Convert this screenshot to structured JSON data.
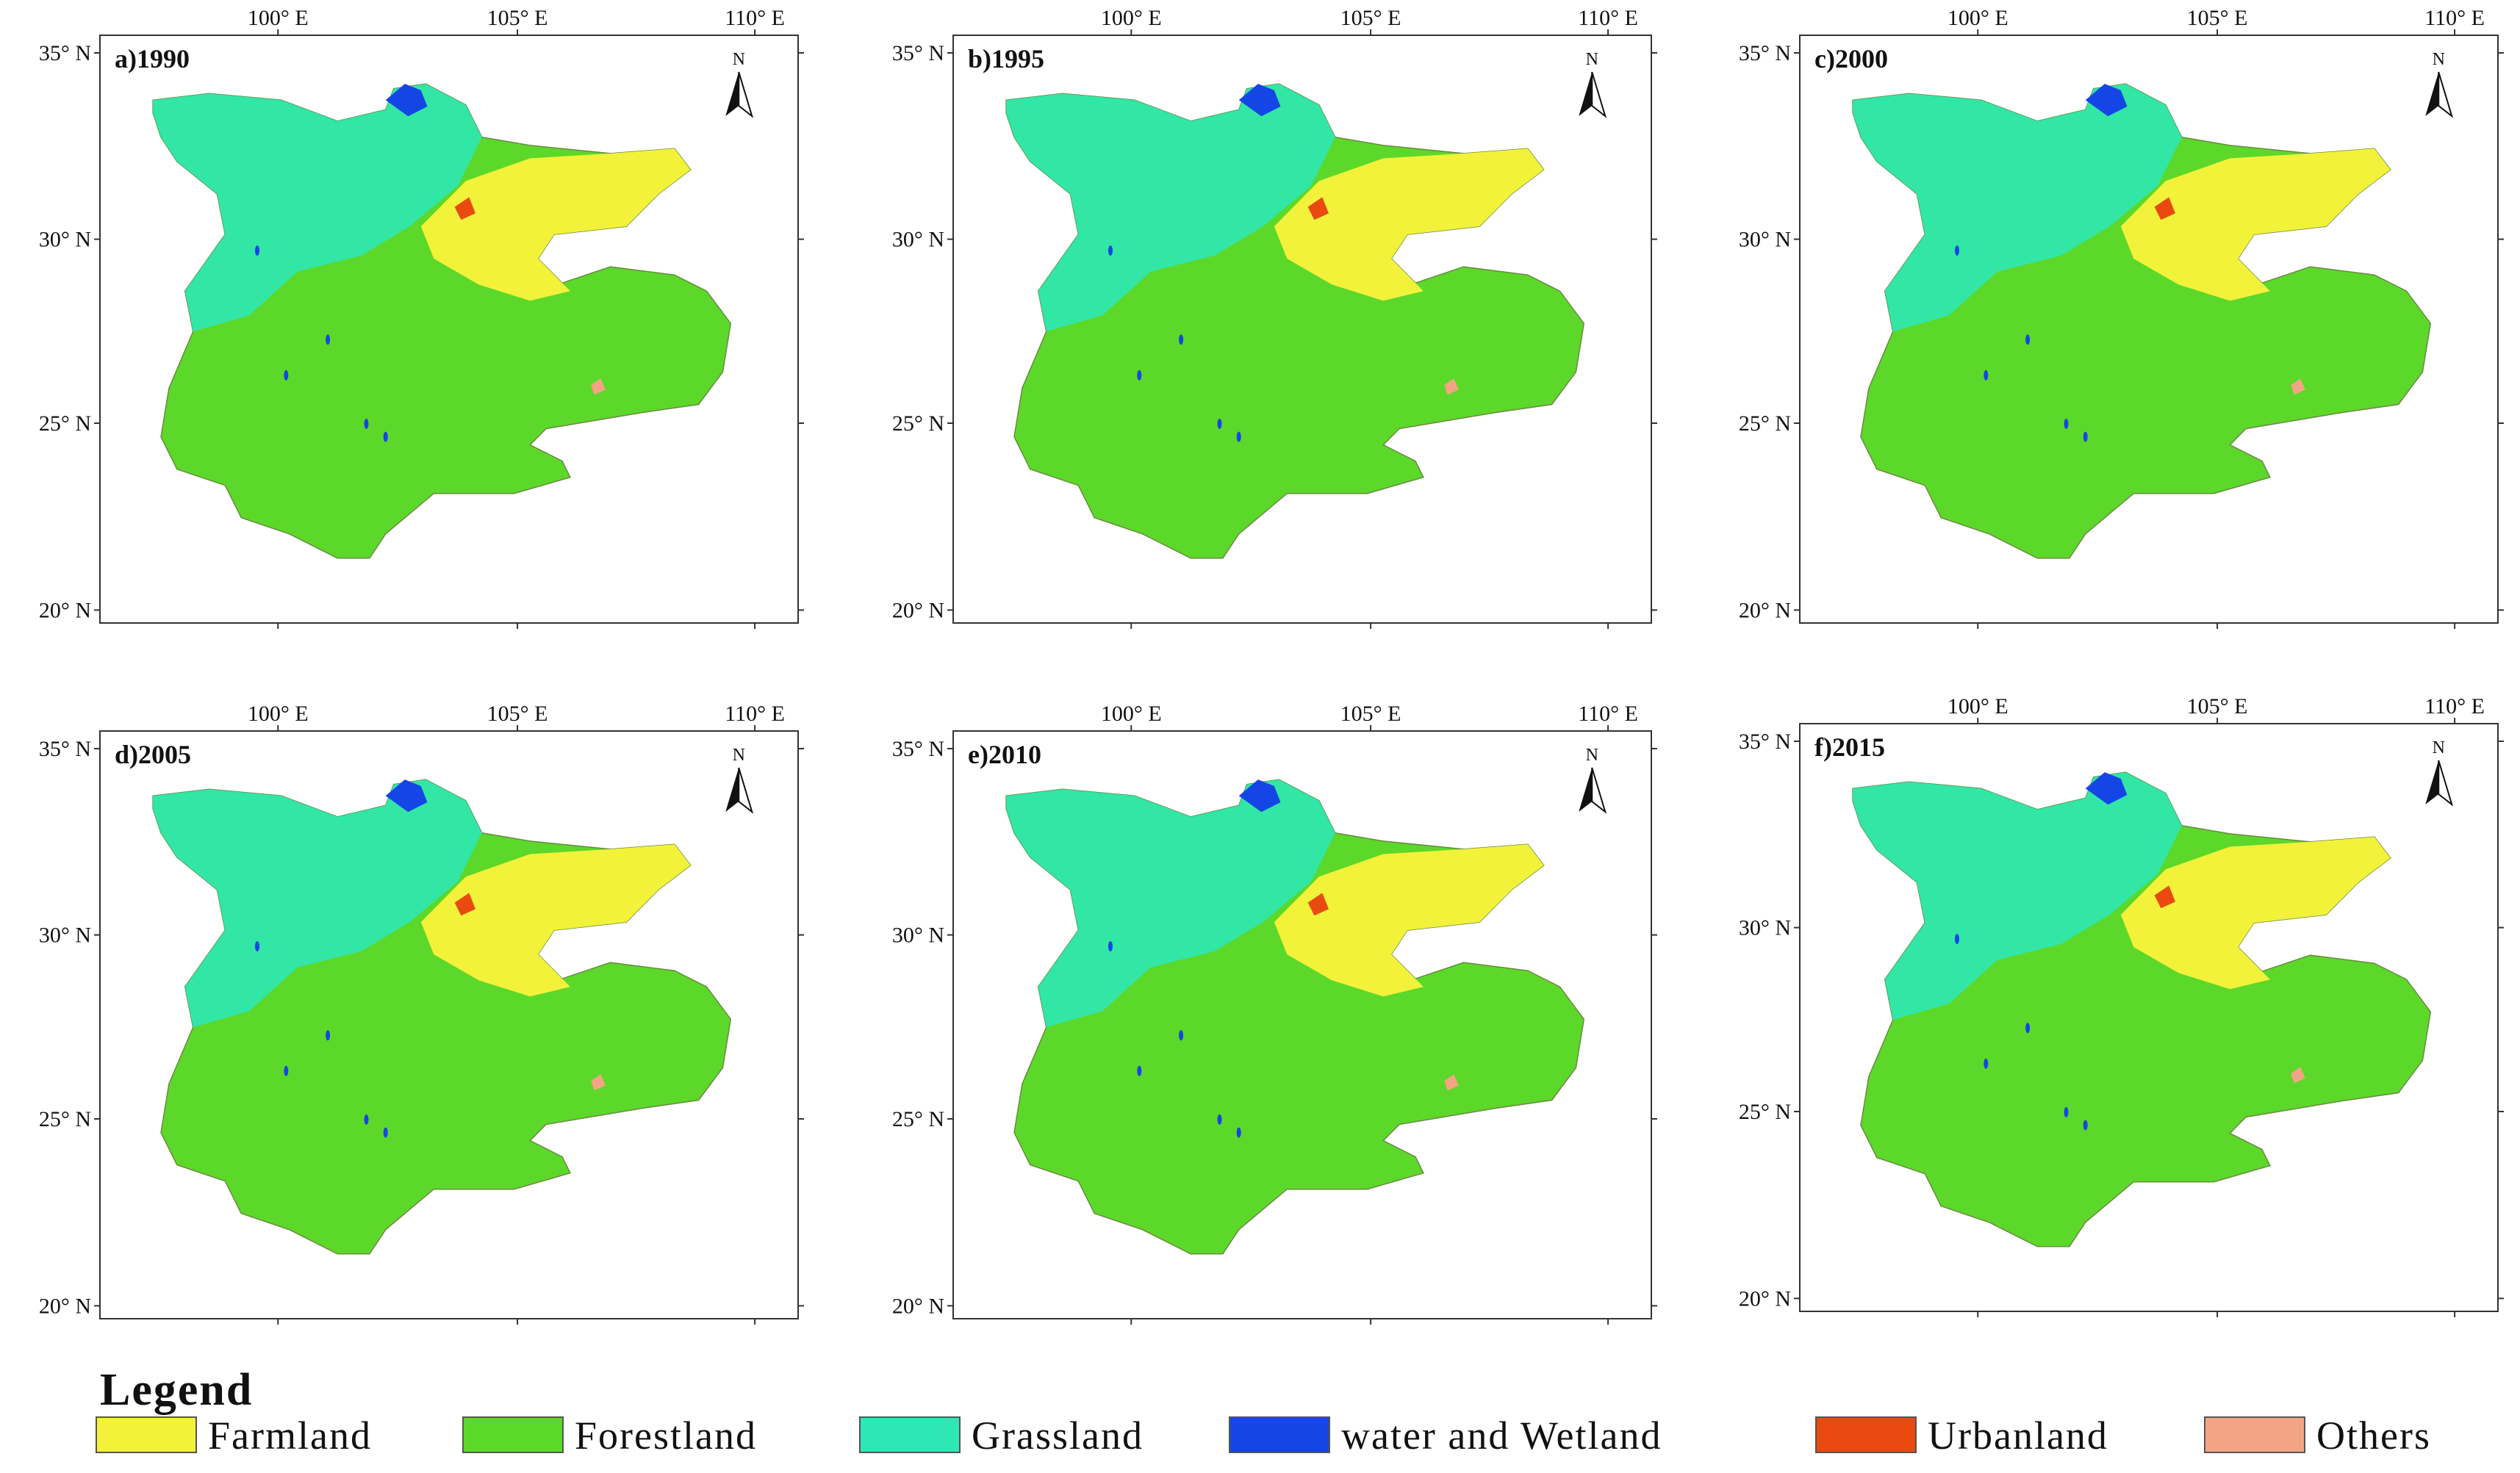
{
  "panels": [
    {
      "label": "a)1990"
    },
    {
      "label": "b)1995"
    },
    {
      "label": "c)2000"
    },
    {
      "label": "d)2005"
    },
    {
      "label": "e)2010"
    },
    {
      "label": "f)2015"
    }
  ],
  "longitude_ticks": [
    "100° E",
    "105° E",
    "110° E"
  ],
  "latitude_ticks": [
    "35° N",
    "30° N",
    "25° N",
    "20° N"
  ],
  "north_label": "N",
  "legend": {
    "title": "Legend",
    "items": [
      {
        "label": "Farmland",
        "color": "#f2f23a"
      },
      {
        "label": "Forestland",
        "color": "#5cd82a"
      },
      {
        "label": "Grassland",
        "color": "#2de8b4"
      },
      {
        "label": "water and Wetland",
        "color": "#1446e6"
      },
      {
        "label": "Urbanland",
        "color": "#e84a10"
      },
      {
        "label": "Others",
        "color": "#f4a484"
      }
    ]
  }
}
